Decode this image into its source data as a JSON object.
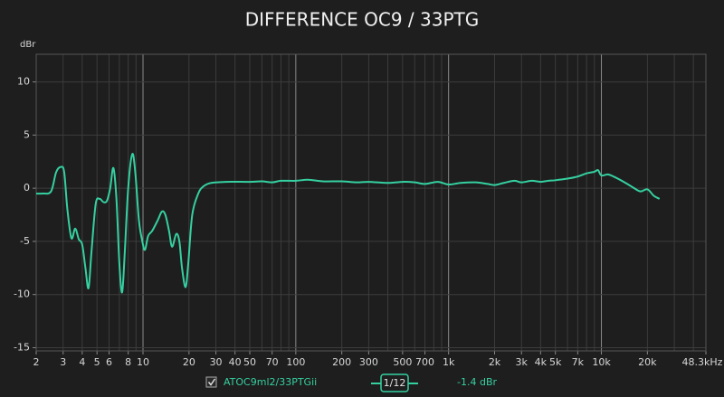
{
  "chart_data": {
    "type": "line",
    "title": "DIFFERENCE OC9 / 33PTG",
    "y_label": "dBr",
    "smoothing": "1/12",
    "readout": "-1.4 dBr",
    "log_x": true,
    "grid": true,
    "xlim": [
      2,
      48300
    ],
    "ylim": [
      -15.3,
      12.6
    ],
    "yticks": [
      10,
      5,
      0,
      -5,
      -10,
      -15
    ],
    "xticks": [
      2,
      3,
      4,
      5,
      6,
      8,
      10,
      20,
      30,
      40,
      50,
      70,
      100,
      200,
      300,
      500,
      700,
      {
        "value": 1000,
        "label": "1k"
      },
      {
        "value": 2000,
        "label": "2k"
      },
      {
        "value": 3000,
        "label": "3k"
      },
      {
        "value": 4000,
        "label": "4k"
      },
      {
        "value": 5000,
        "label": "5k"
      },
      {
        "value": 7000,
        "label": "7k"
      },
      {
        "value": 10000,
        "label": "10k"
      },
      {
        "value": 20000,
        "label": "20k"
      },
      {
        "value": 48300,
        "label": "48.3kHz"
      }
    ],
    "xgrid": [
      2,
      3,
      4,
      5,
      6,
      7,
      8,
      9,
      10,
      20,
      30,
      40,
      50,
      60,
      70,
      80,
      90,
      100,
      200,
      300,
      400,
      500,
      600,
      700,
      800,
      900,
      1000,
      2000,
      3000,
      4000,
      5000,
      6000,
      7000,
      8000,
      9000,
      10000,
      20000,
      30000,
      40000
    ],
    "xgrid_major": [
      10,
      100,
      1000,
      10000
    ],
    "series": [
      {
        "name": "ATOC9ml2/33PTGii",
        "color": "#35d0a0",
        "x": [
          2,
          2.2,
          2.5,
          2.7,
          2.9,
          3.05,
          3.2,
          3.4,
          3.6,
          3.8,
          4.0,
          4.2,
          4.4,
          4.6,
          4.9,
          5.2,
          5.5,
          5.8,
          6.1,
          6.4,
          6.7,
          7.0,
          7.3,
          7.6,
          8.0,
          8.5,
          8.9,
          9.4,
          9.9,
          10.3,
          10.8,
          11.5,
          12.5,
          13.3,
          14,
          14.8,
          15.5,
          16.5,
          17.3,
          18,
          19,
          19.8,
          21,
          23,
          25,
          28,
          35,
          50,
          60,
          70,
          80,
          100,
          120,
          150,
          200,
          250,
          300,
          400,
          500,
          600,
          700,
          850,
          1000,
          1200,
          1500,
          1800,
          2000,
          2300,
          2700,
          3000,
          3500,
          4000,
          4500,
          5000,
          6000,
          7000,
          8000,
          9000,
          9500,
          10000,
          11000,
          12000,
          14000,
          16000,
          18000,
          20000,
          22000,
          24000
        ],
        "values": [
          -0.5,
          -0.5,
          -0.3,
          1.5,
          2.0,
          1.5,
          -2,
          -4.7,
          -3.8,
          -4.8,
          -5.3,
          -7.5,
          -9.4,
          -6,
          -1.5,
          -1.0,
          -1.3,
          -1.2,
          0,
          1.9,
          -1,
          -7,
          -9.8,
          -6,
          0,
          3.2,
          1.5,
          -3,
          -5,
          -5.8,
          -4.5,
          -4,
          -3,
          -2.2,
          -2.5,
          -4,
          -5.5,
          -4.3,
          -5,
          -7.5,
          -9.3,
          -7,
          -2.5,
          -0.5,
          0.2,
          0.5,
          0.6,
          0.6,
          0.65,
          0.55,
          0.7,
          0.7,
          0.8,
          0.65,
          0.65,
          0.55,
          0.6,
          0.5,
          0.6,
          0.55,
          0.4,
          0.6,
          0.35,
          0.5,
          0.55,
          0.4,
          0.3,
          0.5,
          0.7,
          0.55,
          0.7,
          0.6,
          0.7,
          0.75,
          0.9,
          1.1,
          1.4,
          1.55,
          1.7,
          1.2,
          1.3,
          1.1,
          0.6,
          0.1,
          -0.3,
          -0.1,
          -0.7,
          -1.0
        ]
      }
    ]
  }
}
